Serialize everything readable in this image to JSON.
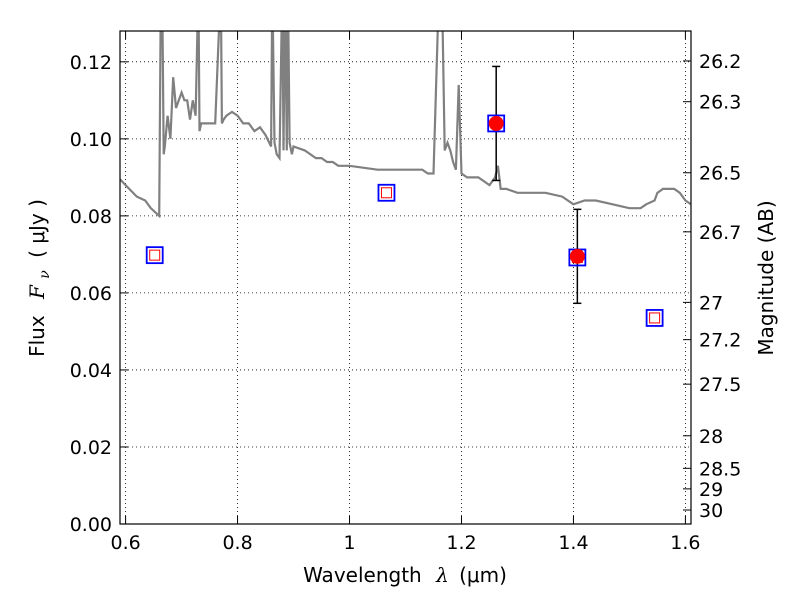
{
  "chart_data": {
    "type": "scatter",
    "xlabel_text": "Wavelength",
    "xlabel_symbol": "λ",
    "xlabel_unit": "(μm)",
    "ylabel_text": "Flux",
    "ylabel_symbol": "F",
    "ylabel_subscript": "ν",
    "ylabel_unit": "( μJy )",
    "y2label": "Magnitude (AB)",
    "xlim": [
      0.59,
      1.61
    ],
    "ylim": [
      0.0,
      0.128
    ],
    "grid": true,
    "xticks": [
      0.6,
      0.8,
      1.0,
      1.2,
      1.4,
      1.6
    ],
    "xtick_labels": [
      "0.6",
      "0.8",
      "1",
      "1.2",
      "1.4",
      "1.6"
    ],
    "yticks": [
      0.0,
      0.02,
      0.04,
      0.06,
      0.08,
      0.1,
      0.12
    ],
    "ytick_labels": [
      "0.00",
      "0.02",
      "0.04",
      "0.06",
      "0.08",
      "0.10",
      "0.12"
    ],
    "y2ticks": [
      26.2,
      26.3,
      26.5,
      26.7,
      27,
      27.2,
      27.5,
      28,
      28.5,
      29,
      30
    ],
    "y2tick_labels": [
      "26.2",
      "26.3",
      "26.5",
      "26.7",
      "27",
      "27.2",
      "27.5",
      "28",
      "28.5",
      "29",
      "30"
    ],
    "series": [
      {
        "type": "line",
        "color": "#808080",
        "x": [
          0.59,
          0.6,
          0.62,
          0.635,
          0.645,
          0.66,
          0.663,
          0.666,
          0.668,
          0.67,
          0.675,
          0.68,
          0.685,
          0.69,
          0.695,
          0.7,
          0.705,
          0.71,
          0.715,
          0.72,
          0.725,
          0.73,
          0.732,
          0.735,
          0.74,
          0.75,
          0.76,
          0.77,
          0.772,
          0.775,
          0.78,
          0.79,
          0.8,
          0.81,
          0.82,
          0.83,
          0.84,
          0.85,
          0.86,
          0.862,
          0.866,
          0.87,
          0.875,
          0.88,
          0.882,
          0.885,
          0.888,
          0.89,
          0.893,
          0.897,
          0.9,
          0.92,
          0.94,
          0.95,
          0.96,
          0.97,
          0.98,
          1.0,
          1.05,
          1.1,
          1.13,
          1.14,
          1.15,
          1.16,
          1.165,
          1.17,
          1.175,
          1.18,
          1.185,
          1.19,
          1.195,
          1.2,
          1.21,
          1.23,
          1.25,
          1.26,
          1.265,
          1.27,
          1.28,
          1.3,
          1.32,
          1.35,
          1.38,
          1.4,
          1.42,
          1.44,
          1.47,
          1.5,
          1.52,
          1.53,
          1.545,
          1.55,
          1.56,
          1.58,
          1.59,
          1.6,
          1.61
        ],
        "y": [
          0.0895,
          0.088,
          0.085,
          0.084,
          0.082,
          0.08,
          0.14,
          0.13,
          0.096,
          0.098,
          0.106,
          0.1,
          0.116,
          0.108,
          0.11,
          0.112,
          0.11,
          0.11,
          0.105,
          0.11,
          0.106,
          0.14,
          0.102,
          0.104,
          0.104,
          0.104,
          0.104,
          0.14,
          0.104,
          0.105,
          0.106,
          0.107,
          0.106,
          0.104,
          0.104,
          0.102,
          0.103,
          0.101,
          0.098,
          0.14,
          0.099,
          0.096,
          0.095,
          0.14,
          0.097,
          0.14,
          0.097,
          0.14,
          0.099,
          0.096,
          0.098,
          0.097,
          0.095,
          0.095,
          0.094,
          0.094,
          0.093,
          0.093,
          0.092,
          0.092,
          0.092,
          0.091,
          0.091,
          0.14,
          0.14,
          0.097,
          0.099,
          0.097,
          0.094,
          0.092,
          0.114,
          0.091,
          0.09,
          0.09,
          0.088,
          0.09,
          0.093,
          0.087,
          0.087,
          0.086,
          0.086,
          0.086,
          0.085,
          0.083,
          0.084,
          0.084,
          0.083,
          0.082,
          0.082,
          0.083,
          0.084,
          0.086,
          0.087,
          0.087,
          0.086,
          0.084,
          0.083
        ]
      },
      {
        "type": "open-square-markers",
        "edge_color": "#0000ff",
        "inner_color": "#ff0000",
        "x": [
          0.652,
          1.066,
          1.262,
          1.407,
          1.545
        ],
        "y": [
          0.0698,
          0.086,
          0.104,
          0.0692,
          0.0535
        ]
      },
      {
        "type": "filled-circle-markers-with-errorbars",
        "color": "#ff0000",
        "errorbar_color": "#000000",
        "x": [
          1.262,
          1.407
        ],
        "y": [
          0.104,
          0.0695
        ],
        "yerr": [
          0.0148,
          0.0122
        ]
      }
    ]
  }
}
